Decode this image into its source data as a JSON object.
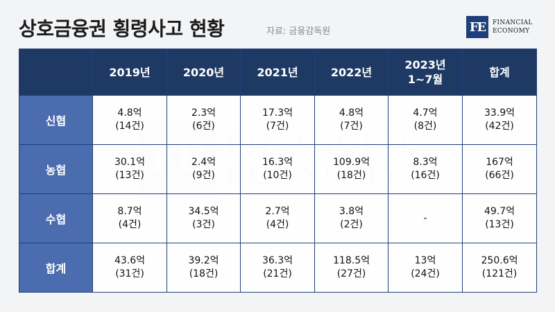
{
  "title": "상호금융권 횡령사고 현황",
  "source": "자료: 금융감독원",
  "logo": {
    "mark": "FE",
    "line1": "FINANCIAL",
    "line2": "ECONOMY"
  },
  "watermark": {
    "mark": "FE",
    "line1": "FINANCIAL",
    "line2": "ECONOMY"
  },
  "table": {
    "columns": [
      "",
      "2019년",
      "2020년",
      "2021년",
      "2022년",
      "2023년\n1~7월",
      "합계"
    ],
    "rows": [
      {
        "label": "신협",
        "cells": [
          {
            "amount": "4.8억",
            "count": "(14건)"
          },
          {
            "amount": "2.3억",
            "count": "(6건)"
          },
          {
            "amount": "17.3억",
            "count": "(7건)"
          },
          {
            "amount": "4.8억",
            "count": "(7건)"
          },
          {
            "amount": "4.7억",
            "count": "(8건)"
          },
          {
            "amount": "33.9억",
            "count": "(42건)"
          }
        ]
      },
      {
        "label": "농협",
        "cells": [
          {
            "amount": "30.1억",
            "count": "(13건)"
          },
          {
            "amount": "2.4억",
            "count": "(9건)"
          },
          {
            "amount": "16.3억",
            "count": "(10건)"
          },
          {
            "amount": "109.9억",
            "count": "(18건)"
          },
          {
            "amount": "8.3억",
            "count": "(16건)"
          },
          {
            "amount": "167억",
            "count": "(66건)"
          }
        ]
      },
      {
        "label": "수협",
        "cells": [
          {
            "amount": "8.7억",
            "count": "(4건)"
          },
          {
            "amount": "34.5억",
            "count": "(3건)"
          },
          {
            "amount": "2.7억",
            "count": "(4건)"
          },
          {
            "amount": "3.8억",
            "count": "(2건)"
          },
          {
            "amount": "-",
            "count": ""
          },
          {
            "amount": "49.7억",
            "count": "(13건)"
          }
        ]
      },
      {
        "label": "합계",
        "cells": [
          {
            "amount": "43.6억",
            "count": "(31건)"
          },
          {
            "amount": "39.2억",
            "count": "(18건)"
          },
          {
            "amount": "36.3억",
            "count": "(21건)"
          },
          {
            "amount": "118.5억",
            "count": "(27건)"
          },
          {
            "amount": "13억",
            "count": "(24건)"
          },
          {
            "amount": "250.6억",
            "count": "(121건)"
          }
        ]
      }
    ]
  },
  "colors": {
    "header_bg": "#1e3a64",
    "row_label_bg": "#4b6cae",
    "border": "#1f3f7a",
    "background": "#f3f4f6"
  }
}
